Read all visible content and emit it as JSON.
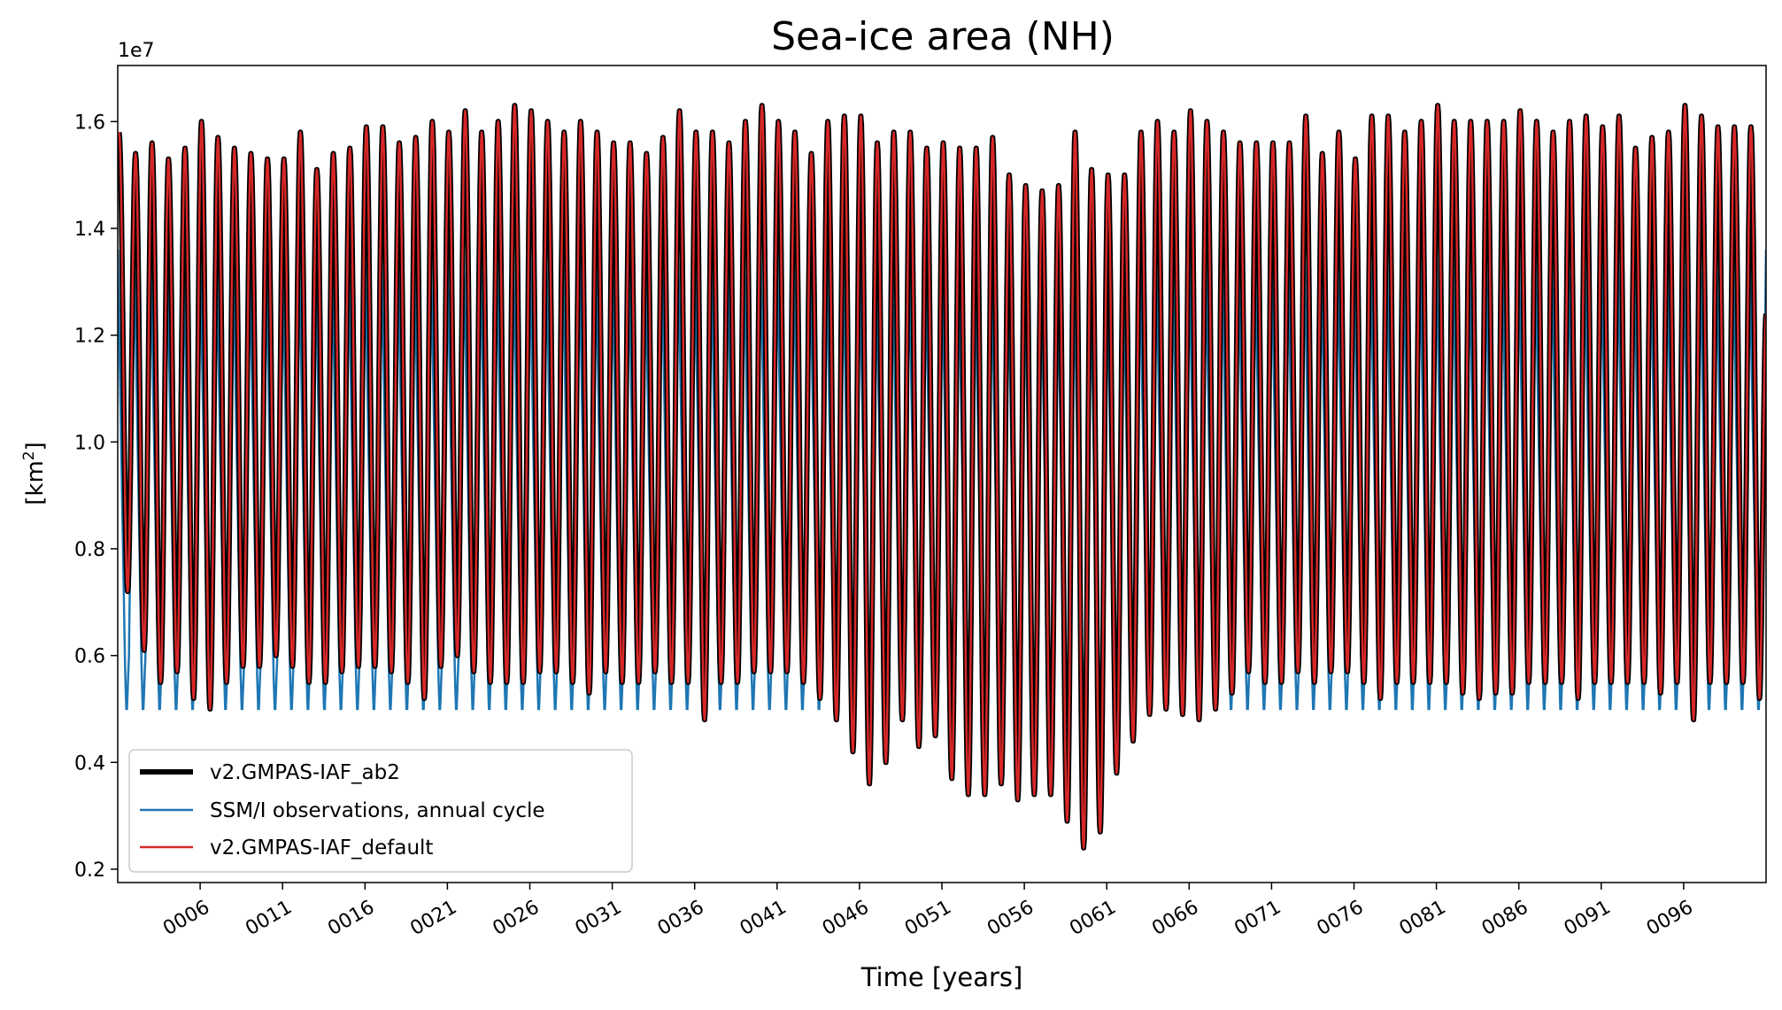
{
  "chart_data": {
    "type": "line",
    "title": "Sea-ice area (NH)",
    "xlabel": "Time [years]",
    "ylabel_main": "[km",
    "ylabel_sup": "2",
    "ylabel_end": "]",
    "y_scale_label": "1e7",
    "y_multiplier": 10000000,
    "ylim": [
      0.175,
      1.705
    ],
    "xlim": [
      1.0,
      101.0
    ],
    "y_ticks": [
      0.2,
      0.4,
      0.6,
      0.8,
      1.0,
      1.2,
      1.4,
      1.6
    ],
    "y_tick_labels": [
      "0.2",
      "0.4",
      "0.6",
      "0.8",
      "1.0",
      "1.2",
      "1.4",
      "1.6"
    ],
    "x_ticks": [
      6,
      11,
      16,
      21,
      26,
      31,
      36,
      41,
      46,
      51,
      56,
      61,
      66,
      71,
      76,
      81,
      86,
      91,
      96
    ],
    "x_tick_labels": [
      "0006",
      "0011",
      "0016",
      "0021",
      "0026",
      "0031",
      "0036",
      "0041",
      "0046",
      "0051",
      "0056",
      "0061",
      "0066",
      "0071",
      "0076",
      "0081",
      "0086",
      "0091",
      "0096"
    ],
    "observations": {
      "name": "SSM/I observations, annual cycle",
      "color": "#1f77b4",
      "annual_max": 1.36,
      "annual_min": 0.5,
      "secondary_min": 0.57
    },
    "model": {
      "name_ab2": "v2.GMPAS-IAF_ab2",
      "name_default": "v2.GMPAS-IAF_default",
      "color_ab2": "#000000",
      "color_default": "#d62728",
      "years": [
        1,
        2,
        3,
        4,
        5,
        6,
        7,
        8,
        9,
        10,
        11,
        12,
        13,
        14,
        15,
        16,
        17,
        18,
        19,
        20,
        21,
        22,
        23,
        24,
        25,
        26,
        27,
        28,
        29,
        30,
        31,
        32,
        33,
        34,
        35,
        36,
        37,
        38,
        39,
        40,
        41,
        42,
        43,
        44,
        45,
        46,
        47,
        48,
        49,
        50,
        51,
        52,
        53,
        54,
        55,
        56,
        57,
        58,
        59,
        60,
        61,
        62,
        63,
        64,
        65,
        66,
        67,
        68,
        69,
        70,
        71,
        72,
        73,
        74,
        75,
        76,
        77,
        78,
        79,
        80,
        81,
        82,
        83,
        84,
        85,
        86,
        87,
        88,
        89,
        90,
        91,
        92,
        93,
        94,
        95,
        96,
        97,
        98,
        99,
        100
      ],
      "annual_max": [
        1.58,
        1.54,
        1.56,
        1.53,
        1.55,
        1.6,
        1.57,
        1.55,
        1.54,
        1.53,
        1.53,
        1.58,
        1.51,
        1.54,
        1.55,
        1.59,
        1.59,
        1.56,
        1.57,
        1.6,
        1.58,
        1.62,
        1.58,
        1.6,
        1.63,
        1.62,
        1.6,
        1.58,
        1.6,
        1.58,
        1.56,
        1.56,
        1.54,
        1.57,
        1.62,
        1.58,
        1.58,
        1.56,
        1.6,
        1.63,
        1.6,
        1.58,
        1.54,
        1.6,
        1.61,
        1.61,
        1.56,
        1.58,
        1.58,
        1.55,
        1.56,
        1.55,
        1.55,
        1.57,
        1.5,
        1.48,
        1.47,
        1.48,
        1.58,
        1.51,
        1.5,
        1.5,
        1.58,
        1.6,
        1.58,
        1.62,
        1.6,
        1.58,
        1.56,
        1.56,
        1.56,
        1.56,
        1.61,
        1.54,
        1.58,
        1.53,
        1.61,
        1.61,
        1.58,
        1.6,
        1.63,
        1.6,
        1.6,
        1.6,
        1.6,
        1.62,
        1.6,
        1.58,
        1.6,
        1.61,
        1.59,
        1.61,
        1.55,
        1.57,
        1.58,
        1.63,
        1.61,
        1.59,
        1.59,
        1.59
      ],
      "annual_min": [
        0.72,
        0.61,
        0.55,
        0.57,
        0.52,
        0.5,
        0.55,
        0.58,
        0.58,
        0.6,
        0.58,
        0.55,
        0.55,
        0.57,
        0.58,
        0.58,
        0.57,
        0.55,
        0.52,
        0.58,
        0.6,
        0.57,
        0.55,
        0.55,
        0.55,
        0.57,
        0.57,
        0.55,
        0.53,
        0.57,
        0.55,
        0.55,
        0.57,
        0.55,
        0.55,
        0.48,
        0.55,
        0.55,
        0.57,
        0.57,
        0.57,
        0.55,
        0.52,
        0.48,
        0.42,
        0.36,
        0.4,
        0.48,
        0.43,
        0.45,
        0.37,
        0.34,
        0.34,
        0.36,
        0.33,
        0.34,
        0.34,
        0.29,
        0.24,
        0.27,
        0.38,
        0.44,
        0.49,
        0.5,
        0.49,
        0.48,
        0.5,
        0.53,
        0.57,
        0.55,
        0.55,
        0.57,
        0.55,
        0.57,
        0.57,
        0.55,
        0.52,
        0.55,
        0.55,
        0.55,
        0.55,
        0.53,
        0.52,
        0.53,
        0.53,
        0.55,
        0.55,
        0.55,
        0.52,
        0.55,
        0.55,
        0.55,
        0.55,
        0.53,
        0.55,
        0.48,
        0.55,
        0.55,
        0.55,
        0.52
      ],
      "end_value": 1.24
    }
  }
}
